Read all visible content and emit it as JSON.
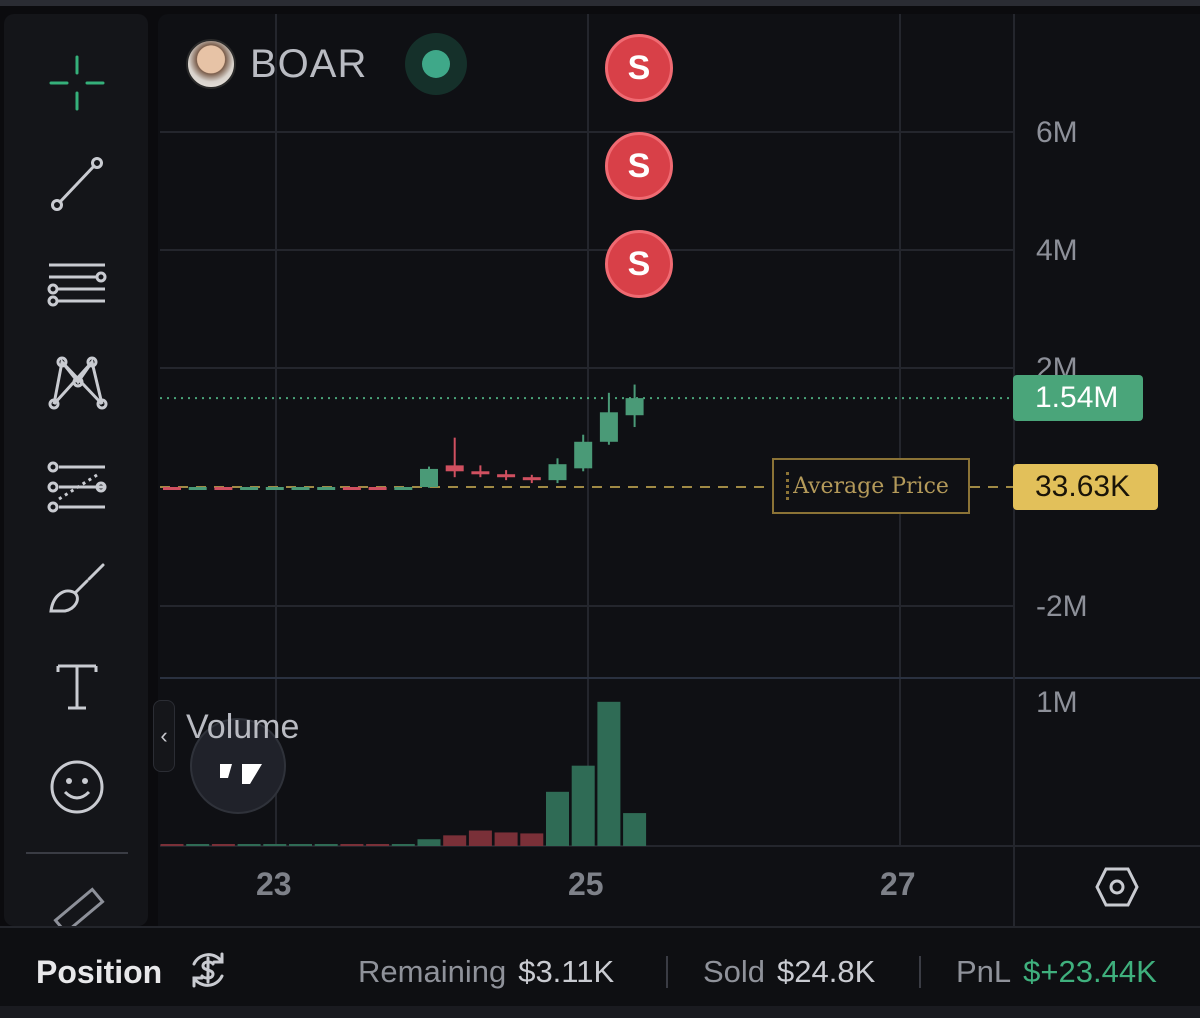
{
  "toolbar": {
    "tools": [
      {
        "name": "crosshair"
      },
      {
        "name": "trend-line"
      },
      {
        "name": "horizontal-lines"
      },
      {
        "name": "pattern"
      },
      {
        "name": "fib-retracement"
      },
      {
        "name": "brush"
      },
      {
        "name": "text"
      },
      {
        "name": "emoji"
      },
      {
        "name": "ruler"
      }
    ]
  },
  "header": {
    "symbol": "BOAR",
    "status": "live"
  },
  "markers": [
    {
      "label": "S"
    },
    {
      "label": "S"
    },
    {
      "label": "S"
    }
  ],
  "chart": {
    "y_axis_labels": [
      "6M",
      "4M",
      "2M",
      "-2M"
    ],
    "volume_axis_label": "1M",
    "x_axis_labels": [
      "23",
      "25",
      "27"
    ],
    "last_price": "1.54M",
    "average_price_label": "Average Price",
    "average_price": "33.63K",
    "volume_label": "Volume",
    "colors": {
      "up": "#4a9a77",
      "down": "#d05060",
      "avg": "#e2c05a",
      "last": "#4aa57a"
    }
  },
  "chart_data": {
    "type": "candlestick",
    "x": [
      "23",
      "25",
      "27"
    ],
    "ylim": [
      -3000000,
      7000000
    ],
    "candles": [
      {
        "open": 33630,
        "high": 33630,
        "low": 33630,
        "close": 33630,
        "dir": "down"
      },
      {
        "open": 33630,
        "high": 33630,
        "low": 33630,
        "close": 33630,
        "dir": "up"
      },
      {
        "open": 33630,
        "high": 33630,
        "low": 33630,
        "close": 33630,
        "dir": "down"
      },
      {
        "open": 33630,
        "high": 33630,
        "low": 33630,
        "close": 33630,
        "dir": "up"
      },
      {
        "open": 33630,
        "high": 33630,
        "low": 33630,
        "close": 33630,
        "dir": "up"
      },
      {
        "open": 33630,
        "high": 33630,
        "low": 33630,
        "close": 33630,
        "dir": "up"
      },
      {
        "open": 33630,
        "high": 33630,
        "low": 33630,
        "close": 33630,
        "dir": "up"
      },
      {
        "open": 33630,
        "high": 33630,
        "low": 33630,
        "close": 33630,
        "dir": "down"
      },
      {
        "open": 33630,
        "high": 33630,
        "low": 33630,
        "close": 33630,
        "dir": "down"
      },
      {
        "open": 33630,
        "high": 33630,
        "low": 33630,
        "close": 33630,
        "dir": "up"
      },
      {
        "open": 33000,
        "high": 380000,
        "low": 20000,
        "close": 340000,
        "dir": "up"
      },
      {
        "open": 300000,
        "high": 870000,
        "low": 200000,
        "close": 400000,
        "dir": "down"
      },
      {
        "open": 300000,
        "high": 400000,
        "low": 200000,
        "close": 250000,
        "dir": "down"
      },
      {
        "open": 250000,
        "high": 320000,
        "low": 150000,
        "close": 200000,
        "dir": "down"
      },
      {
        "open": 200000,
        "high": 240000,
        "low": 100000,
        "close": 150000,
        "dir": "down"
      },
      {
        "open": 150000,
        "high": 520000,
        "low": 100000,
        "close": 420000,
        "dir": "up"
      },
      {
        "open": 350000,
        "high": 920000,
        "low": 300000,
        "close": 800000,
        "dir": "up"
      },
      {
        "open": 800000,
        "high": 1630000,
        "low": 750000,
        "close": 1300000,
        "dir": "up"
      },
      {
        "open": 1250000,
        "high": 1770000,
        "low": 1050000,
        "close": 1540000,
        "dir": "up"
      }
    ],
    "volume": {
      "ylim": [
        0,
        1550000
      ],
      "values": [
        15000,
        15000,
        15000,
        15000,
        15000,
        15000,
        15000,
        15000,
        15000,
        15000,
        70000,
        110000,
        160000,
        140000,
        130000,
        560000,
        830000,
        1490000,
        340000
      ],
      "dir": [
        "down",
        "up",
        "down",
        "up",
        "up",
        "up",
        "up",
        "down",
        "down",
        "up",
        "up",
        "down",
        "down",
        "down",
        "down",
        "up",
        "up",
        "up",
        "up"
      ]
    },
    "last_price": 1540000,
    "average_price": 33630
  },
  "footer": {
    "title": "Position",
    "remaining_label": "Remaining",
    "remaining_value": "$3.11K",
    "sold_label": "Sold",
    "sold_value": "$24.8K",
    "pnl_label": "PnL",
    "pnl_value": "$+23.44K",
    "pnl_color": "#3fb07d"
  }
}
